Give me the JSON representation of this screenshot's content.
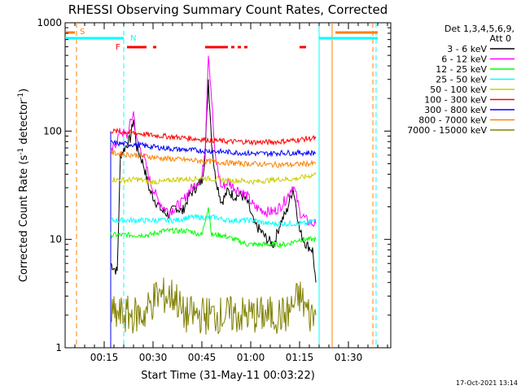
{
  "chart_data": {
    "type": "line",
    "title": "RHESSI Observing Summary Count Rates, Corrected",
    "xlabel": "Start Time (31-May-11 00:03:22)",
    "ylabel_main": "Corrected Count Rate (s",
    "ylabel_sup1": "-1",
    "ylabel_mid": " detector",
    "ylabel_sup2": "-1",
    "ylabel_end": ")",
    "xlim": [
      0,
      100
    ],
    "ylim": [
      1,
      1000
    ],
    "yscale": "log",
    "xticks": [
      {
        "v": 12,
        "label": "00:15"
      },
      {
        "v": 27,
        "label": "00:30"
      },
      {
        "v": 42,
        "label": "00:45"
      },
      {
        "v": 57,
        "label": "01:00"
      },
      {
        "v": 72,
        "label": "01:15"
      },
      {
        "v": 87,
        "label": "01:30"
      }
    ],
    "yticks": [
      {
        "v": 1,
        "label": "1"
      },
      {
        "v": 10,
        "label": "10"
      },
      {
        "v": 100,
        "label": "100"
      },
      {
        "v": 1000,
        "label": "1000"
      }
    ],
    "legend_header": [
      "Det 1,3,4,5,6,9,",
      "Att 0"
    ],
    "series": [
      {
        "name": "3 - 6 keV",
        "color": "#000000",
        "values": [
          [
            14,
            6
          ],
          [
            16,
            5
          ],
          [
            17,
            60
          ],
          [
            20,
            85
          ],
          [
            21,
            130
          ],
          [
            22,
            70
          ],
          [
            24,
            50
          ],
          [
            26,
            28
          ],
          [
            28,
            22
          ],
          [
            30,
            18
          ],
          [
            32,
            17
          ],
          [
            34,
            20
          ],
          [
            36,
            18
          ],
          [
            38,
            25
          ],
          [
            40,
            30
          ],
          [
            42,
            35
          ],
          [
            43,
            60
          ],
          [
            44,
            300
          ],
          [
            45,
            80
          ],
          [
            46,
            40
          ],
          [
            48,
            22
          ],
          [
            50,
            28
          ],
          [
            52,
            25
          ],
          [
            54,
            26
          ],
          [
            56,
            22
          ],
          [
            58,
            14
          ],
          [
            60,
            12
          ],
          [
            62,
            10
          ],
          [
            64,
            9
          ],
          [
            66,
            14
          ],
          [
            68,
            18
          ],
          [
            70,
            30
          ],
          [
            71,
            20
          ],
          [
            72,
            12
          ],
          [
            74,
            9
          ],
          [
            76,
            8
          ],
          [
            77,
            4
          ]
        ]
      },
      {
        "name": "6 - 12 keV",
        "color": "#ff00ff",
        "values": [
          [
            14,
            60
          ],
          [
            17,
            100
          ],
          [
            19,
            90
          ],
          [
            21,
            150
          ],
          [
            22,
            80
          ],
          [
            24,
            60
          ],
          [
            26,
            35
          ],
          [
            28,
            25
          ],
          [
            30,
            20
          ],
          [
            32,
            18
          ],
          [
            34,
            20
          ],
          [
            36,
            22
          ],
          [
            38,
            28
          ],
          [
            40,
            32
          ],
          [
            42,
            38
          ],
          [
            43,
            70
          ],
          [
            44,
            540
          ],
          [
            45,
            200
          ],
          [
            46,
            60
          ],
          [
            48,
            30
          ],
          [
            50,
            34
          ],
          [
            52,
            30
          ],
          [
            54,
            28
          ],
          [
            56,
            25
          ],
          [
            58,
            20
          ],
          [
            60,
            19
          ],
          [
            62,
            18
          ],
          [
            64,
            18
          ],
          [
            66,
            20
          ],
          [
            68,
            24
          ],
          [
            70,
            32
          ],
          [
            71,
            25
          ],
          [
            72,
            18
          ],
          [
            74,
            15
          ],
          [
            76,
            14
          ],
          [
            77,
            14
          ]
        ]
      },
      {
        "name": "12 - 25 keV",
        "color": "#00ff00",
        "values": [
          [
            14,
            11
          ],
          [
            18,
            11
          ],
          [
            22,
            11
          ],
          [
            26,
            11
          ],
          [
            30,
            12
          ],
          [
            34,
            12
          ],
          [
            38,
            12
          ],
          [
            42,
            11
          ],
          [
            44,
            20
          ],
          [
            45,
            11
          ],
          [
            48,
            11
          ],
          [
            52,
            10
          ],
          [
            56,
            9
          ],
          [
            60,
            9
          ],
          [
            64,
            9
          ],
          [
            68,
            9
          ],
          [
            72,
            10
          ],
          [
            77,
            10
          ]
        ]
      },
      {
        "name": "25 - 50 keV",
        "color": "#00ffff",
        "values": [
          [
            14,
            15
          ],
          [
            18,
            15
          ],
          [
            22,
            15
          ],
          [
            26,
            15
          ],
          [
            30,
            15
          ],
          [
            34,
            15
          ],
          [
            38,
            16
          ],
          [
            42,
            16
          ],
          [
            46,
            16
          ],
          [
            50,
            15
          ],
          [
            54,
            15
          ],
          [
            58,
            15
          ],
          [
            62,
            14
          ],
          [
            66,
            14
          ],
          [
            70,
            14
          ],
          [
            74,
            14
          ],
          [
            77,
            15
          ]
        ]
      },
      {
        "name": "50 - 100 keV",
        "color": "#cccc00",
        "values": [
          [
            14,
            36
          ],
          [
            18,
            35
          ],
          [
            22,
            36
          ],
          [
            26,
            34
          ],
          [
            30,
            34
          ],
          [
            34,
            36
          ],
          [
            38,
            36
          ],
          [
            42,
            37
          ],
          [
            46,
            36
          ],
          [
            50,
            35
          ],
          [
            54,
            35
          ],
          [
            58,
            34
          ],
          [
            62,
            35
          ],
          [
            66,
            36
          ],
          [
            70,
            36
          ],
          [
            74,
            38
          ],
          [
            77,
            40
          ]
        ]
      },
      {
        "name": "100 - 300 keV",
        "color": "#ff0000",
        "values": [
          [
            14,
            100
          ],
          [
            18,
            98
          ],
          [
            22,
            96
          ],
          [
            26,
            92
          ],
          [
            30,
            90
          ],
          [
            34,
            88
          ],
          [
            38,
            86
          ],
          [
            42,
            84
          ],
          [
            46,
            82
          ],
          [
            50,
            80
          ],
          [
            54,
            80
          ],
          [
            58,
            79
          ],
          [
            62,
            79
          ],
          [
            66,
            80
          ],
          [
            70,
            82
          ],
          [
            74,
            85
          ],
          [
            77,
            86
          ]
        ]
      },
      {
        "name": "300 - 800 keV",
        "color": "#0000ff",
        "values": [
          [
            14,
            78
          ],
          [
            18,
            76
          ],
          [
            22,
            75
          ],
          [
            26,
            72
          ],
          [
            30,
            70
          ],
          [
            34,
            68
          ],
          [
            38,
            67
          ],
          [
            42,
            66
          ],
          [
            46,
            65
          ],
          [
            50,
            64
          ],
          [
            54,
            63
          ],
          [
            58,
            62
          ],
          [
            62,
            62
          ],
          [
            66,
            63
          ],
          [
            70,
            63
          ],
          [
            74,
            63
          ],
          [
            77,
            63
          ]
        ]
      },
      {
        "name": "800 - 7000 keV",
        "color": "#ff8000",
        "values": [
          [
            14,
            63
          ],
          [
            18,
            61
          ],
          [
            22,
            60
          ],
          [
            26,
            58
          ],
          [
            30,
            56
          ],
          [
            34,
            55
          ],
          [
            38,
            54
          ],
          [
            42,
            53
          ],
          [
            46,
            52
          ],
          [
            50,
            51
          ],
          [
            54,
            50
          ],
          [
            58,
            50
          ],
          [
            62,
            49
          ],
          [
            66,
            49
          ],
          [
            70,
            49
          ],
          [
            74,
            50
          ],
          [
            77,
            50
          ]
        ]
      },
      {
        "name": "7000 - 15000 keV",
        "color": "#808000",
        "values": [
          [
            14,
            2
          ],
          [
            16,
            2
          ],
          [
            20,
            2
          ],
          [
            24,
            2
          ],
          [
            28,
            3
          ],
          [
            30,
            3
          ],
          [
            34,
            3
          ],
          [
            36,
            2
          ],
          [
            40,
            2
          ],
          [
            44,
            2
          ],
          [
            48,
            2
          ],
          [
            52,
            2
          ],
          [
            56,
            2
          ],
          [
            60,
            2
          ],
          [
            64,
            2
          ],
          [
            68,
            2
          ],
          [
            72,
            3
          ],
          [
            75,
            2
          ],
          [
            77,
            2
          ]
        ]
      }
    ],
    "night_s_label": "S",
    "saa_n_label": "N",
    "flare_f_label": "F",
    "date_stamp": "17-Oct-2021 13:14"
  }
}
